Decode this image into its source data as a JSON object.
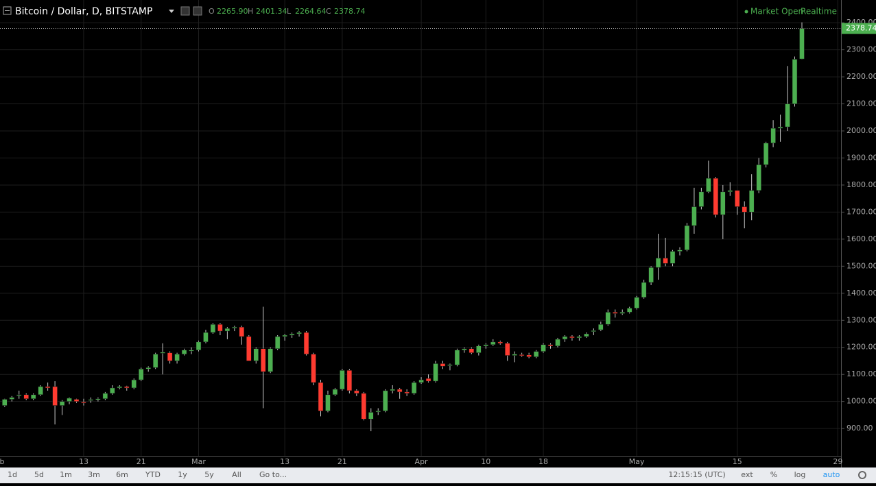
{
  "header": {
    "title": "Bitcoin / Dollar, D, BITSTAMP",
    "ohlc": [
      {
        "label": "O",
        "value": "2265.90"
      },
      {
        "label": "H",
        "value": "2401.34"
      },
      {
        "label": "L",
        "value": "2264.64"
      },
      {
        "label": "C",
        "value": "2378.74"
      }
    ],
    "status": "Market Open",
    "mode": "Realtime"
  },
  "toolbar": {
    "ranges": [
      "1d",
      "5d",
      "1m",
      "3m",
      "6m",
      "YTD",
      "1y",
      "5y",
      "All"
    ],
    "goto": "Go to...",
    "time": "12:15:15 (UTC)",
    "options": [
      "ext",
      "%",
      "log"
    ],
    "active": "auto"
  },
  "chart_data": {
    "type": "candlestick",
    "up_color": "#4caf50",
    "down_color": "#ff3b30",
    "last_label": "2378.74",
    "grid": true,
    "xlim": [
      -0.65,
      116.35
    ],
    "xticks": [
      {
        "value": -1,
        "label": "b"
      },
      {
        "value": 11,
        "label": "13"
      },
      {
        "value": 19,
        "label": "21"
      },
      {
        "value": 27,
        "label": "Mar"
      },
      {
        "value": 39,
        "label": "13"
      },
      {
        "value": 47,
        "label": "21"
      },
      {
        "value": 58,
        "label": "Apr"
      },
      {
        "value": 67,
        "label": "10"
      },
      {
        "value": 75,
        "label": "18"
      },
      {
        "value": 88,
        "label": "May"
      },
      {
        "value": 102,
        "label": "15"
      },
      {
        "value": 116,
        "label": "29"
      }
    ],
    "ylim": [
      799,
      2484
    ],
    "yticks": [
      {
        "value": 900,
        "label": "900.00"
      },
      {
        "value": 1000,
        "label": "1000.00"
      },
      {
        "value": 1100,
        "label": "1100.00"
      },
      {
        "value": 1200,
        "label": "1200.00"
      },
      {
        "value": 1300,
        "label": "1300.00"
      },
      {
        "value": 1400,
        "label": "1400.00"
      },
      {
        "value": 1500,
        "label": "1500.00"
      },
      {
        "value": 1600,
        "label": "1600.00"
      },
      {
        "value": 1700,
        "label": "1700.00"
      },
      {
        "value": 1800,
        "label": "1800.00"
      },
      {
        "value": 1900,
        "label": "1900.00"
      },
      {
        "value": 2000,
        "label": "2000.00"
      },
      {
        "value": 2100,
        "label": "2100.00"
      },
      {
        "value": 2200,
        "label": "2200.00"
      },
      {
        "value": 2300,
        "label": "2300.00"
      },
      {
        "value": 2400,
        "label": "2400.00"
      }
    ],
    "open": [
      985,
      1008,
      1022,
      1025,
      1010,
      1025,
      1055,
      1055,
      985,
      1000,
      1008,
      998,
      1004,
      1006,
      1010,
      1030,
      1050,
      1055,
      1050,
      1080,
      1120,
      1125,
      1178,
      1180,
      1150,
      1175,
      1190,
      1190,
      1220,
      1255,
      1285,
      1260,
      1272,
      1275,
      1240,
      1150,
      1195,
      1110,
      1195,
      1240,
      1245,
      1250,
      1255,
      1175,
      1070,
      965,
      1025,
      1045,
      1115,
      1040,
      1030,
      935,
      962,
      965,
      1040,
      1045,
      1035,
      1030,
      1070,
      1085,
      1075,
      1140,
      1133,
      1135,
      1190,
      1195,
      1180,
      1205,
      1210,
      1220,
      1215,
      1170,
      1173,
      1172,
      1165,
      1185,
      1210,
      1205,
      1230,
      1240,
      1235,
      1240,
      1260,
      1265,
      1285,
      1330,
      1325,
      1330,
      1345,
      1385,
      1440,
      1495,
      1530,
      1510,
      1555,
      1560,
      1650,
      1720,
      1775,
      1825,
      1690,
      1775,
      1780,
      1720,
      1700,
      1780,
      1875,
      1955,
      2010,
      2015,
      2100,
      2265.9
    ],
    "high": [
      1010,
      1020,
      1040,
      1030,
      1030,
      1060,
      1070,
      1075,
      1005,
      1015,
      1010,
      1010,
      1015,
      1015,
      1035,
      1060,
      1060,
      1058,
      1085,
      1125,
      1130,
      1180,
      1215,
      1185,
      1180,
      1195,
      1200,
      1225,
      1265,
      1290,
      1290,
      1275,
      1280,
      1280,
      1245,
      1200,
      1350,
      1200,
      1245,
      1250,
      1255,
      1260,
      1260,
      1180,
      1080,
      1040,
      1050,
      1120,
      1120,
      1045,
      1035,
      975,
      975,
      1045,
      1060,
      1050,
      1045,
      1075,
      1090,
      1100,
      1150,
      1150,
      1140,
      1195,
      1200,
      1200,
      1210,
      1215,
      1230,
      1225,
      1220,
      1185,
      1180,
      1180,
      1190,
      1215,
      1215,
      1235,
      1245,
      1245,
      1245,
      1255,
      1270,
      1295,
      1340,
      1340,
      1340,
      1350,
      1390,
      1450,
      1500,
      1620,
      1605,
      1560,
      1570,
      1660,
      1790,
      1790,
      1890,
      1830,
      1800,
      1810,
      1780,
      1740,
      1840,
      1900,
      1960,
      2040,
      2060,
      2240,
      2275,
      2401.34
    ],
    "low": [
      980,
      1000,
      1010,
      1005,
      1005,
      1020,
      1040,
      915,
      950,
      990,
      995,
      985,
      995,
      1000,
      1005,
      1025,
      1045,
      1040,
      1045,
      1075,
      1110,
      1120,
      1100,
      1140,
      1140,
      1170,
      1175,
      1185,
      1215,
      1250,
      1245,
      1230,
      1260,
      1210,
      1150,
      1140,
      975,
      1105,
      1190,
      1225,
      1235,
      1240,
      1170,
      1060,
      945,
      960,
      1020,
      1040,
      1030,
      1020,
      930,
      890,
      950,
      960,
      1030,
      1010,
      1020,
      1025,
      1065,
      1070,
      1070,
      1120,
      1115,
      1130,
      1180,
      1175,
      1170,
      1195,
      1205,
      1210,
      1150,
      1145,
      1165,
      1160,
      1160,
      1180,
      1195,
      1200,
      1220,
      1225,
      1225,
      1235,
      1245,
      1260,
      1280,
      1310,
      1320,
      1325,
      1340,
      1380,
      1430,
      1450,
      1500,
      1500,
      1540,
      1555,
      1620,
      1710,
      1770,
      1680,
      1600,
      1760,
      1690,
      1640,
      1670,
      1770,
      1865,
      1940,
      1960,
      2000,
      2090,
      2264.64
    ],
    "close": [
      1008,
      1015,
      1025,
      1010,
      1025,
      1055,
      1050,
      985,
      1000,
      1012,
      1000,
      997,
      1007,
      1010,
      1030,
      1050,
      1055,
      1050,
      1080,
      1120,
      1125,
      1175,
      1182,
      1150,
      1175,
      1190,
      1190,
      1220,
      1255,
      1285,
      1260,
      1270,
      1275,
      1240,
      1150,
      1195,
      1110,
      1195,
      1240,
      1245,
      1250,
      1255,
      1175,
      1070,
      965,
      1025,
      1045,
      1115,
      1040,
      1030,
      935,
      960,
      965,
      1040,
      1045,
      1035,
      1030,
      1070,
      1080,
      1075,
      1140,
      1130,
      1136,
      1190,
      1195,
      1180,
      1205,
      1210,
      1220,
      1215,
      1170,
      1175,
      1172,
      1165,
      1185,
      1210,
      1205,
      1230,
      1240,
      1235,
      1240,
      1250,
      1262,
      1285,
      1330,
      1325,
      1330,
      1345,
      1385,
      1440,
      1495,
      1530,
      1510,
      1555,
      1560,
      1650,
      1720,
      1775,
      1825,
      1690,
      1775,
      1780,
      1720,
      1700,
      1780,
      1875,
      1955,
      2010,
      2015,
      2100,
      2265,
      2378.74
    ]
  }
}
